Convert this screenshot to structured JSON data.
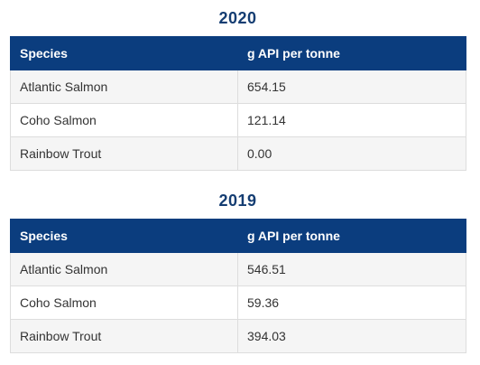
{
  "sections": [
    {
      "year": "2020",
      "columns": [
        "Species",
        "g API per tonne"
      ],
      "rows": [
        [
          "Atlantic Salmon",
          "654.15"
        ],
        [
          "Coho Salmon",
          "121.14"
        ],
        [
          "Rainbow Trout",
          "0.00"
        ]
      ]
    },
    {
      "year": "2019",
      "columns": [
        "Species",
        "g API per tonne"
      ],
      "rows": [
        [
          "Atlantic Salmon",
          "546.51"
        ],
        [
          "Coho Salmon",
          "59.36"
        ],
        [
          "Rainbow Trout",
          "394.03"
        ]
      ]
    }
  ],
  "colors": {
    "title": "#143d72",
    "header_bg": "#0b3d7e",
    "header_text": "#ffffff",
    "row_alt_bg": "#f5f5f5",
    "border": "#dddddd"
  }
}
